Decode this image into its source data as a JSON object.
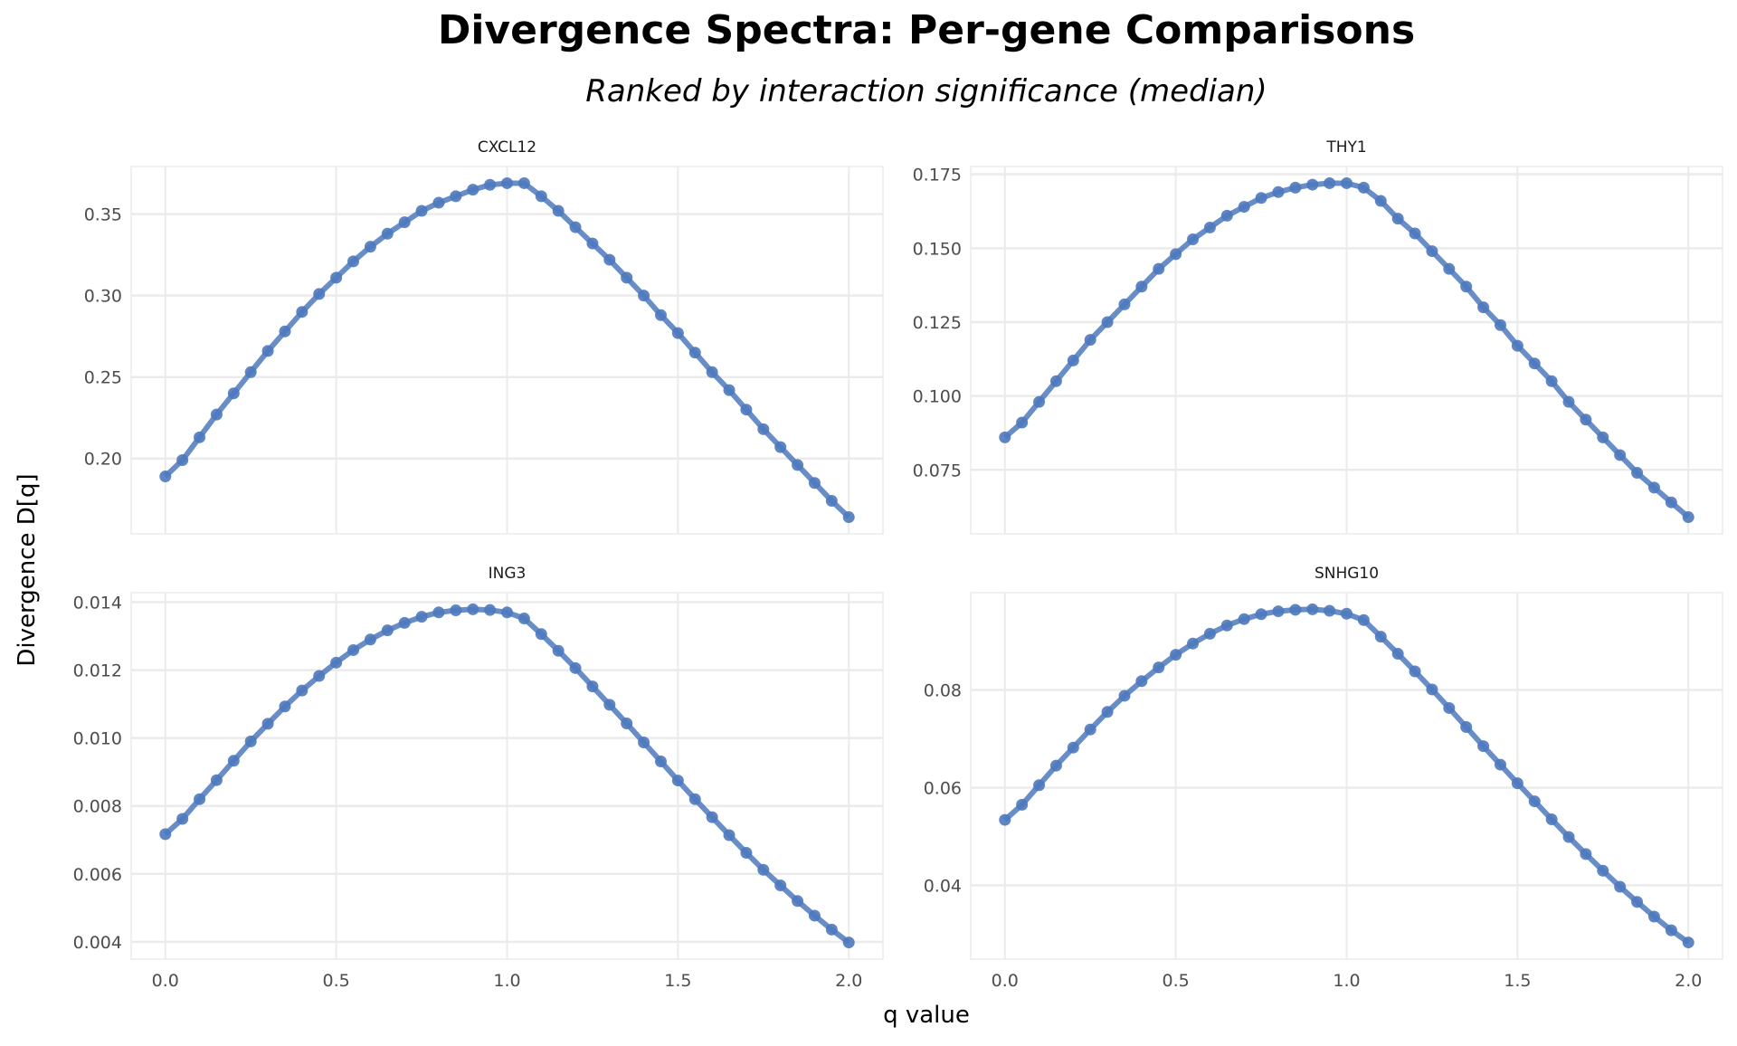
{
  "title": "Divergence Spectra: Per-gene Comparisons",
  "subtitle": "Ranked by interaction significance (median)",
  "xlabel": "q value",
  "ylabel": "Divergence D[q]",
  "colors": {
    "series": "#4e79bd",
    "grid": "#ebebeb",
    "text": "#4d4d4d"
  },
  "chart_data": [
    {
      "type": "line",
      "panel": "CXCL12",
      "x_ticks": [
        "0.0",
        "0.5",
        "1.0",
        "1.5",
        "2.0"
      ],
      "y_ticks": [
        "0.20",
        "0.25",
        "0.30",
        "0.35"
      ],
      "y_tick_values": [
        0.2,
        0.25,
        0.3,
        0.35
      ],
      "values": [
        0.189,
        0.199,
        0.213,
        0.227,
        0.24,
        0.253,
        0.266,
        0.278,
        0.29,
        0.301,
        0.311,
        0.321,
        0.33,
        0.338,
        0.345,
        0.352,
        0.357,
        0.361,
        0.365,
        0.368,
        0.369,
        0.369,
        0.361,
        0.352,
        0.342,
        0.332,
        0.322,
        0.311,
        0.3,
        0.288,
        0.277,
        0.265,
        0.253,
        0.242,
        0.23,
        0.218,
        0.207,
        0.196,
        0.185,
        0.174,
        0.164
      ]
    },
    {
      "type": "line",
      "panel": "THY1",
      "x_ticks": [
        "0.0",
        "0.5",
        "1.0",
        "1.5",
        "2.0"
      ],
      "y_ticks": [
        "0.075",
        "0.100",
        "0.125",
        "0.150",
        "0.175"
      ],
      "y_tick_values": [
        0.075,
        0.1,
        0.125,
        0.15,
        0.175
      ],
      "values": [
        0.086,
        0.091,
        0.098,
        0.105,
        0.112,
        0.119,
        0.125,
        0.131,
        0.137,
        0.143,
        0.148,
        0.153,
        0.157,
        0.161,
        0.164,
        0.167,
        0.169,
        0.1705,
        0.1715,
        0.172,
        0.172,
        0.1705,
        0.166,
        0.16,
        0.155,
        0.149,
        0.143,
        0.137,
        0.13,
        0.124,
        0.117,
        0.111,
        0.105,
        0.098,
        0.092,
        0.086,
        0.08,
        0.074,
        0.069,
        0.064,
        0.059
      ]
    },
    {
      "type": "line",
      "panel": "ING3",
      "x_ticks": [
        "0.0",
        "0.5",
        "1.0",
        "1.5",
        "2.0"
      ],
      "y_ticks": [
        "0.004",
        "0.006",
        "0.008",
        "0.010",
        "0.012",
        "0.014"
      ],
      "y_tick_values": [
        0.004,
        0.006,
        0.008,
        0.01,
        0.012,
        0.014
      ],
      "values": [
        0.00717,
        0.00762,
        0.0082,
        0.00876,
        0.00933,
        0.0099,
        0.01042,
        0.01093,
        0.0114,
        0.01183,
        0.01222,
        0.01259,
        0.0129,
        0.01317,
        0.01339,
        0.01357,
        0.0137,
        0.01376,
        0.01379,
        0.01377,
        0.0137,
        0.01352,
        0.01306,
        0.01257,
        0.01206,
        0.01152,
        0.01098,
        0.01043,
        0.00987,
        0.00931,
        0.00875,
        0.0082,
        0.00767,
        0.00714,
        0.00662,
        0.00612,
        0.00566,
        0.0052,
        0.00477,
        0.00436,
        0.00398
      ]
    },
    {
      "type": "line",
      "panel": "SNHG10",
      "x_ticks": [
        "0.0",
        "0.5",
        "1.0",
        "1.5",
        "2.0"
      ],
      "y_ticks": [
        "0.04",
        "0.06",
        "0.08"
      ],
      "y_tick_values": [
        0.04,
        0.06,
        0.08
      ],
      "values": [
        0.0534,
        0.0565,
        0.0605,
        0.0645,
        0.0682,
        0.0719,
        0.0755,
        0.0788,
        0.0818,
        0.0846,
        0.0872,
        0.0895,
        0.0915,
        0.0932,
        0.0945,
        0.0955,
        0.0961,
        0.0964,
        0.0965,
        0.0962,
        0.0956,
        0.0943,
        0.0909,
        0.0874,
        0.0838,
        0.0801,
        0.0763,
        0.0724,
        0.0685,
        0.0647,
        0.0609,
        0.0572,
        0.0535,
        0.0499,
        0.0464,
        0.043,
        0.0397,
        0.0366,
        0.0336,
        0.0308,
        0.0283
      ]
    }
  ],
  "x_values": [
    0,
    0.05,
    0.1,
    0.15,
    0.2,
    0.25,
    0.3,
    0.35,
    0.4,
    0.45,
    0.5,
    0.55,
    0.6,
    0.65,
    0.7,
    0.75,
    0.8,
    0.85,
    0.9,
    0.95,
    1.0,
    1.05,
    1.1,
    1.15,
    1.2,
    1.25,
    1.3,
    1.35,
    1.4,
    1.45,
    1.5,
    1.55,
    1.6,
    1.65,
    1.7,
    1.75,
    1.8,
    1.85,
    1.9,
    1.95,
    2.0
  ],
  "xlim": [
    0,
    2
  ]
}
